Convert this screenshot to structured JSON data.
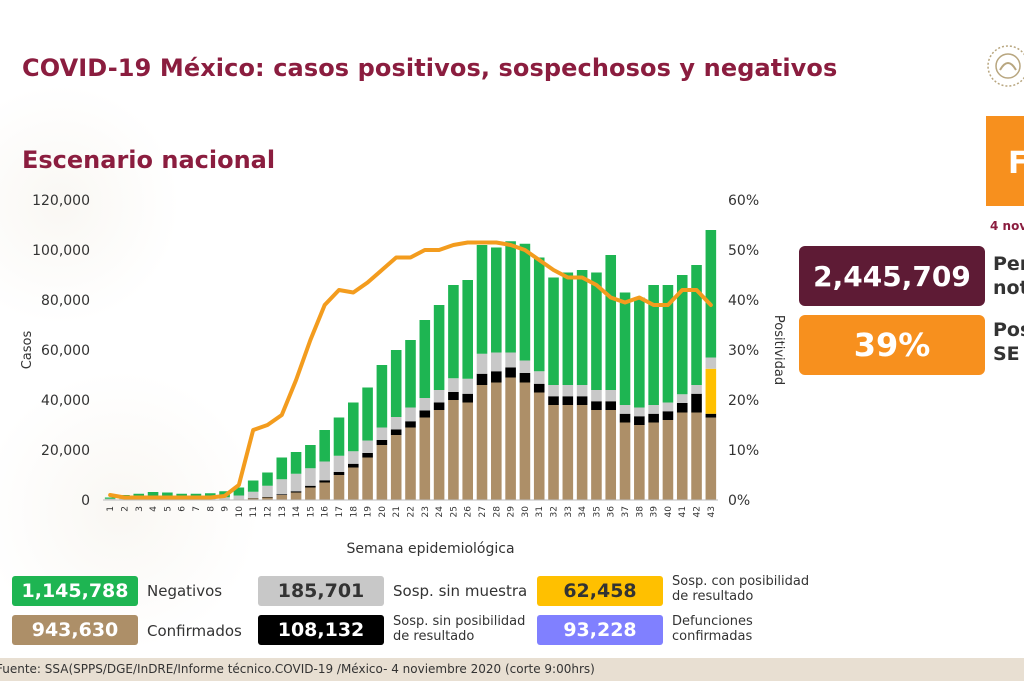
{
  "header": {
    "title": "COVID-19 México: casos positivos, sospechosos y negativos",
    "subtitle": "Escenario nacional",
    "tab_letter": "F",
    "date_clip": "4 nov"
  },
  "stats": [
    {
      "value": "2,445,709",
      "label_line1": "Per",
      "label_line2": "not",
      "color": "#5e1b35"
    },
    {
      "value": "39%",
      "label_line1": "Pos",
      "label_line2": "SE",
      "color": "#f7901e"
    }
  ],
  "legend": [
    {
      "value": "1,145,788",
      "label": "Negativos",
      "color": "#1eb552",
      "text_color": "#ffffff"
    },
    {
      "value": "943,630",
      "label": "Confirmados",
      "color": "#ad8f68",
      "text_color": "#ffffff"
    },
    {
      "value": "185,701",
      "label": "Sosp. sin muestra",
      "color": "#c8c8c8",
      "text_color": "#333333"
    },
    {
      "value": "108,132",
      "label_line1": "Sosp. sin posibilidad",
      "label_line2": "de resultado",
      "color": "#000000",
      "text_color": "#ffffff"
    },
    {
      "value": "62,458",
      "label_line1": "Sosp. con posibilidad",
      "label_line2": "de resultado",
      "color": "#ffc000",
      "text_color": "#333333"
    },
    {
      "value": "93,228",
      "label_line1": "Defunciones",
      "label_line2": "confirmadas",
      "color": "#8080ff",
      "text_color": "#ffffff"
    }
  ],
  "footer": {
    "source": "Fuente: SSA(SPPS/DGE/InDRE/Informe técnico.COVID-19 /México- 4 noviembre 2020 (corte 9:00hrs)"
  },
  "chart_data": {
    "type": "bar",
    "stacked": true,
    "xlabel": "Semana epidemiológica",
    "ylabel": "Casos",
    "y2label": "Positividad",
    "ylim": [
      0,
      120000
    ],
    "y2lim": [
      0,
      60
    ],
    "yticks": [
      0,
      20000,
      40000,
      60000,
      80000,
      100000,
      120000
    ],
    "ytick_labels": [
      "0",
      "20,000",
      "40,000",
      "60,000",
      "80,000",
      "100,000",
      "120,000"
    ],
    "y2ticks": [
      0,
      10,
      20,
      30,
      40,
      50,
      60
    ],
    "y2tick_labels": [
      "0%",
      "10%",
      "20%",
      "30%",
      "40%",
      "50%",
      "60%"
    ],
    "categories": [
      "1",
      "2",
      "3",
      "4",
      "5",
      "6",
      "7",
      "8",
      "9",
      "10",
      "11",
      "12",
      "13",
      "14",
      "15",
      "16",
      "17",
      "18",
      "19",
      "20",
      "21",
      "22",
      "23",
      "24",
      "25",
      "26",
      "27",
      "28",
      "29",
      "30",
      "31",
      "32",
      "33",
      "34",
      "35",
      "36",
      "37",
      "38",
      "39",
      "40",
      "41",
      "42",
      "43"
    ],
    "series": [
      {
        "name": "Confirmados",
        "color": "#ad8f68",
        "values": [
          0,
          0,
          0,
          0,
          0,
          0,
          0,
          0,
          100,
          300,
          700,
          1000,
          2000,
          3000,
          5000,
          7000,
          10000,
          13000,
          17000,
          22000,
          26000,
          29000,
          33000,
          36000,
          40000,
          39000,
          46000,
          47000,
          49000,
          47000,
          43000,
          38000,
          38000,
          38000,
          36000,
          36000,
          31000,
          30000,
          31000,
          32000,
          35000,
          35000,
          33000
        ]
      },
      {
        "name": "Sosp. sin posibilidad de resultado",
        "color": "#000000",
        "values": [
          0,
          0,
          0,
          0,
          0,
          0,
          0,
          0,
          0,
          0,
          100,
          200,
          300,
          500,
          700,
          900,
          1200,
          1500,
          1800,
          2000,
          2200,
          2500,
          2800,
          3000,
          3200,
          3500,
          4500,
          4500,
          4000,
          3800,
          3500,
          3500,
          3500,
          3500,
          3500,
          3500,
          3500,
          3500,
          3500,
          3500,
          3800,
          7500,
          1500
        ]
      },
      {
        "name": "Sosp. con posibilidad de resultado",
        "color": "#ffc000",
        "values": [
          0,
          0,
          0,
          0,
          0,
          0,
          0,
          0,
          0,
          0,
          0,
          0,
          0,
          0,
          0,
          0,
          0,
          0,
          0,
          0,
          0,
          0,
          0,
          0,
          0,
          0,
          0,
          0,
          0,
          0,
          0,
          0,
          0,
          0,
          0,
          0,
          0,
          0,
          0,
          0,
          0,
          0,
          18000
        ]
      },
      {
        "name": "Sosp. sin muestra",
        "color": "#c8c8c8",
        "values": [
          500,
          800,
          1000,
          1200,
          1300,
          1200,
          1000,
          800,
          1000,
          1500,
          2500,
          4500,
          6000,
          7000,
          7000,
          7500,
          6500,
          5000,
          5000,
          5000,
          5000,
          5500,
          5000,
          5000,
          5500,
          6000,
          8000,
          7500,
          6000,
          5000,
          5000,
          4500,
          4500,
          4500,
          4500,
          4500,
          3500,
          3500,
          3500,
          3500,
          3500,
          3500,
          4500
        ]
      },
      {
        "name": "Negativos",
        "color": "#1eb552",
        "values": [
          500,
          1200,
          1500,
          2000,
          1700,
          1300,
          1500,
          1900,
          2400,
          3200,
          4500,
          5300,
          8700,
          8700,
          9300,
          12600,
          15300,
          19500,
          21200,
          25000,
          26800,
          27000,
          31200,
          34000,
          37300,
          39500,
          43500,
          42000,
          44500,
          46700,
          45500,
          43000,
          45000,
          46000,
          47000,
          54000,
          45000,
          44000,
          48000,
          47000,
          47700,
          48000,
          51000
        ]
      },
      {
        "name": "Positividad (%)",
        "type": "line",
        "color": "#f39c1e",
        "axis": "y2",
        "values": [
          1,
          0.5,
          0.5,
          0.5,
          0.5,
          0.5,
          0.5,
          0.5,
          0.8,
          3,
          14,
          15,
          17,
          24,
          32,
          39,
          42,
          41.5,
          43.5,
          46,
          48.5,
          48.5,
          50,
          50,
          51,
          51.5,
          51.5,
          51.5,
          51,
          50,
          48,
          46,
          44.5,
          44.5,
          43,
          40.5,
          39.5,
          40.5,
          39,
          39,
          42,
          42,
          39
        ]
      }
    ]
  }
}
